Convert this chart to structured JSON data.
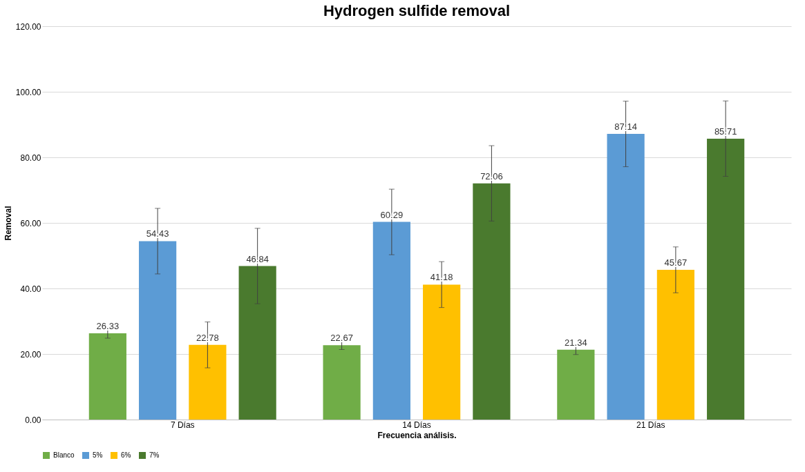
{
  "chart_data": {
    "type": "bar",
    "title": "Hydrogen sulfide removal",
    "xlabel": "Frecuencia análisis.",
    "ylabel": "Removal",
    "categories": [
      "7 Días",
      "14 Días",
      "21 Días"
    ],
    "series": [
      {
        "name": "Blanco",
        "color": "#70ad47",
        "values": [
          26.33,
          22.67,
          21.34
        ],
        "errors": [
          1.5,
          1.3,
          1.5
        ]
      },
      {
        "name": "5%",
        "color": "#5b9bd5",
        "values": [
          54.43,
          60.29,
          87.14
        ],
        "errors": [
          10,
          10,
          10
        ]
      },
      {
        "name": "6%",
        "color": "#ffc000",
        "values": [
          22.78,
          41.18,
          45.67
        ],
        "errors": [
          7,
          7,
          7
        ]
      },
      {
        "name": "7%",
        "color": "#4a7a2e",
        "values": [
          46.84,
          72.06,
          85.71
        ],
        "errors": [
          11.5,
          11.5,
          11.5
        ]
      }
    ],
    "ylim": [
      0,
      120
    ],
    "yticks": [
      {
        "value": 0,
        "label": "0.00"
      },
      {
        "value": 20,
        "label": "20.00"
      },
      {
        "value": 40,
        "label": "40.00"
      },
      {
        "value": 60,
        "label": "60.00"
      },
      {
        "value": 80,
        "label": "80.00"
      },
      {
        "value": 100,
        "label": "100.00"
      },
      {
        "value": 120,
        "label": "120.00"
      }
    ],
    "grid": "y",
    "legend": "bottom",
    "data_labels": true
  }
}
